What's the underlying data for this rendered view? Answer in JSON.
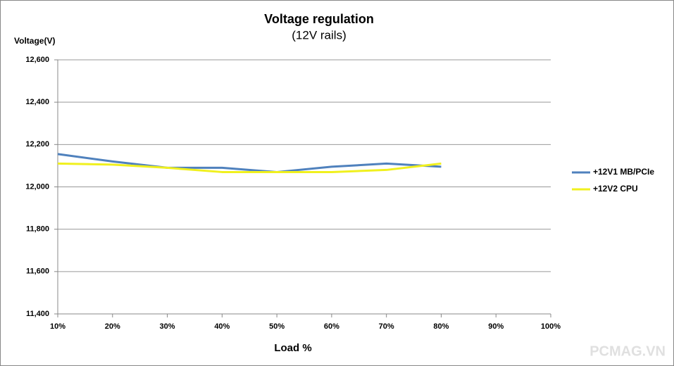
{
  "chart_data": {
    "type": "line",
    "title": "Voltage regulation",
    "subtitle": "(12V rails)",
    "y_label": "Voltage(V)",
    "x_label": "Load %",
    "watermark": "PCMAG.VN",
    "categories": [
      "10%",
      "20%",
      "30%",
      "40%",
      "50%",
      "60%",
      "70%",
      "80%",
      "90%",
      "100%"
    ],
    "series": [
      {
        "name": "+12V1 MB/PCIe",
        "color": "#4f81bd",
        "values": [
          12155,
          12120,
          12090,
          12090,
          12070,
          12095,
          12110,
          12095,
          null,
          null
        ]
      },
      {
        "name": "+12V2 CPU",
        "color": "#f0f01e",
        "values": [
          12110,
          12105,
          12090,
          12070,
          12070,
          12070,
          12080,
          12110,
          null,
          null
        ]
      }
    ],
    "ylim": [
      11400,
      12600
    ],
    "yticks": [
      {
        "value": 11400,
        "label": "11,400"
      },
      {
        "value": 11600,
        "label": "11,600"
      },
      {
        "value": 11800,
        "label": "11,800"
      },
      {
        "value": 12000,
        "label": "12,000"
      },
      {
        "value": 12200,
        "label": "12,200"
      },
      {
        "value": 12400,
        "label": "12,400"
      },
      {
        "value": 12600,
        "label": "12,600"
      }
    ],
    "grid": true,
    "legend": "right"
  }
}
